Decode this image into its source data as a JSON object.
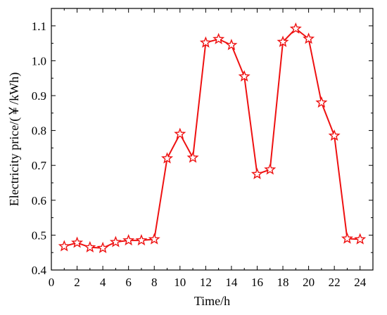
{
  "chart_data": {
    "type": "line",
    "title": "",
    "xlabel": "Time/h",
    "ylabel": "Electricity price/(￥/kWh)",
    "xlim": [
      0,
      25
    ],
    "ylim": [
      0.4,
      1.15
    ],
    "xticks": [
      0,
      2,
      4,
      6,
      8,
      10,
      12,
      14,
      16,
      18,
      20,
      22,
      24
    ],
    "yticks": [
      0.4,
      0.5,
      0.6,
      0.7,
      0.8,
      0.9,
      1.0,
      1.1
    ],
    "ytick_labels": [
      "0.4",
      "0.5",
      "0.6",
      "0.7",
      "0.8",
      "0.9",
      "1.0",
      "1.1"
    ],
    "grid": false,
    "legend": "none",
    "color": "#ee1111",
    "marker": "star",
    "x": [
      1,
      2,
      3,
      4,
      5,
      6,
      7,
      8,
      9,
      10,
      11,
      12,
      13,
      14,
      15,
      16,
      17,
      18,
      19,
      20,
      21,
      22,
      23,
      24
    ],
    "values": [
      0.468,
      0.478,
      0.465,
      0.463,
      0.48,
      0.485,
      0.485,
      0.488,
      0.72,
      0.79,
      0.722,
      1.052,
      1.062,
      1.045,
      0.955,
      0.675,
      0.688,
      1.054,
      1.092,
      1.063,
      0.88,
      0.785,
      0.49,
      0.488
    ]
  }
}
